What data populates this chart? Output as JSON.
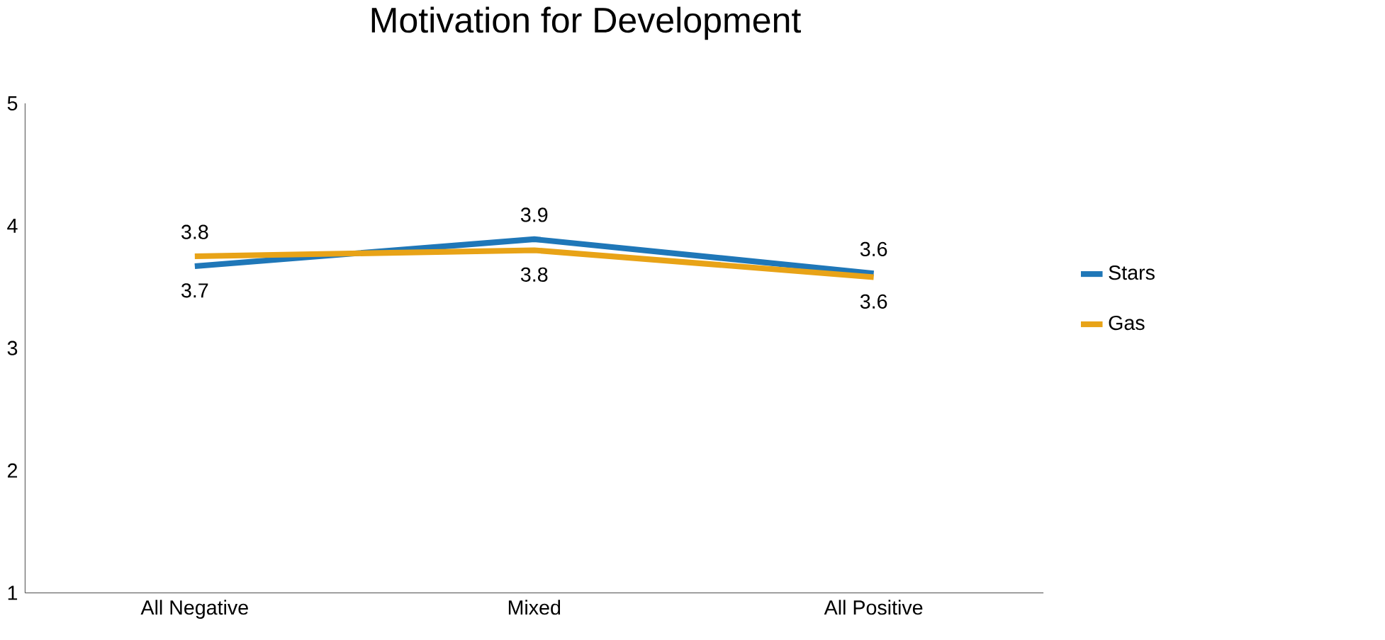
{
  "chart_data": {
    "type": "line",
    "title": "Motivation for Development",
    "categories": [
      "All Negative",
      "Mixed",
      "All Positive"
    ],
    "series": [
      {
        "name": "Stars",
        "color": "#1f77b8",
        "values": [
          3.67,
          3.89,
          3.61
        ],
        "value_labels": [
          "3.7",
          "3.9",
          "3.6"
        ]
      },
      {
        "name": "Gas",
        "color": "#e8a317",
        "values": [
          3.75,
          3.8,
          3.58
        ],
        "value_labels": [
          "3.8",
          "3.8",
          "3.6"
        ]
      }
    ],
    "ylim": [
      1,
      5
    ],
    "yticks": [
      1,
      2,
      3,
      4,
      5
    ],
    "grid": false,
    "legend": "right",
    "marker": "none",
    "line_style": "solid"
  }
}
